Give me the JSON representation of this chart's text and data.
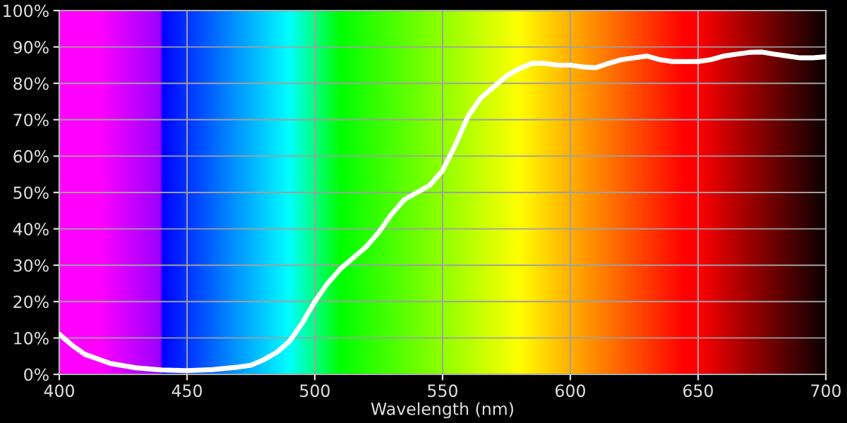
{
  "chart_data": {
    "type": "line",
    "xlabel": "Wavelength (nm)",
    "x": [
      400,
      405,
      410,
      420,
      430,
      440,
      450,
      460,
      470,
      475,
      480,
      485,
      490,
      495,
      500,
      505,
      510,
      515,
      520,
      525,
      530,
      535,
      540,
      545,
      550,
      555,
      560,
      565,
      570,
      575,
      580,
      585,
      590,
      595,
      600,
      605,
      610,
      615,
      620,
      625,
      630,
      635,
      640,
      645,
      650,
      655,
      660,
      665,
      670,
      675,
      680,
      685,
      690,
      695,
      700
    ],
    "series": [
      {
        "color": "#ffffff",
        "values": [
          11,
          8,
          5.5,
          3,
          1.8,
          1.2,
          1,
          1.3,
          2,
          2.5,
          4,
          6,
          9,
          14,
          20,
          25,
          29,
          32,
          35,
          39,
          44,
          48,
          50,
          52,
          56,
          63,
          71,
          76,
          79,
          82,
          84,
          85.5,
          85.5,
          85,
          85,
          84.5,
          84.3,
          85.5,
          86.5,
          87,
          87.5,
          86.5,
          86,
          86,
          86,
          86.5,
          87.5,
          88,
          88.5,
          88.6,
          88,
          87.5,
          87,
          87,
          87.3
        ]
      }
    ],
    "xlim": [
      400,
      700
    ],
    "ylim": [
      0,
      100
    ],
    "xticks": [
      400,
      450,
      500,
      550,
      600,
      650,
      700
    ],
    "yticks": [
      {
        "value": 0,
        "label": "0%"
      },
      {
        "value": 10,
        "label": "10%"
      },
      {
        "value": 20,
        "label": "20%"
      },
      {
        "value": 30,
        "label": "30%"
      },
      {
        "value": 40,
        "label": "40%"
      },
      {
        "value": 50,
        "label": "50%"
      },
      {
        "value": 60,
        "label": "60%"
      },
      {
        "value": 70,
        "label": "70%"
      },
      {
        "value": 80,
        "label": "80%"
      },
      {
        "value": 90,
        "label": "90%"
      },
      {
        "value": 100,
        "label": "100%"
      }
    ],
    "grid": true,
    "line_style": "solid",
    "marker": "none"
  }
}
